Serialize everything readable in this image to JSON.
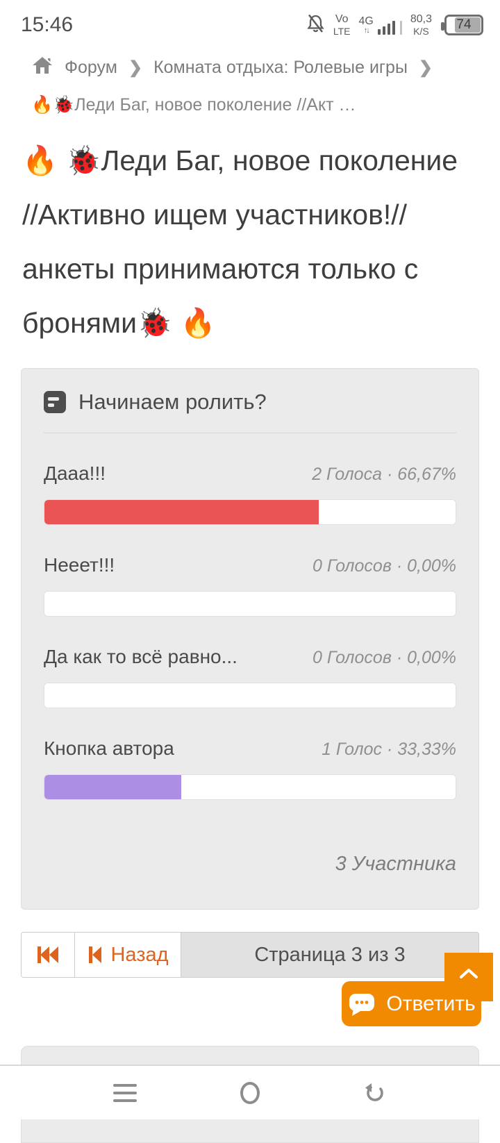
{
  "status_bar": {
    "time": "15:46",
    "volte_top": "Vo",
    "volte_bottom": "LTE",
    "network": "4G",
    "data_arrows": "↑↓",
    "speed_value": "80,3",
    "speed_unit": "K/S",
    "battery_percent": "74",
    "battery_level": 74
  },
  "breadcrumb": {
    "home": "Форум",
    "separator": "❯",
    "section": "Комната отдыха: Ролевые игры",
    "topic_short": "🔥🐞Леди Баг, новое поколение //Акт …"
  },
  "topic": {
    "title": "🔥 🐞Леди Баг, новое поколение //Активно ищем участников!// анкеты принимаются только с бронями🐞 🔥"
  },
  "poll": {
    "question": "Начинаем ролить?",
    "options": [
      {
        "label": "Дааа!!!",
        "meta": "2 Голоса · 66,67%",
        "percent": 66.67,
        "color": "#ea5455"
      },
      {
        "label": "Нееет!!!",
        "meta": "0 Голосов · 0,00%",
        "percent": 0,
        "color": "transparent"
      },
      {
        "label": "Да как то всё равно...",
        "meta": "0 Голосов · 0,00%",
        "percent": 0,
        "color": "transparent"
      },
      {
        "label": "Кнопка автора",
        "meta": "1 Голос · 33,33%",
        "percent": 33.33,
        "color": "#ac8fe4"
      }
    ],
    "participants": "3 Участника"
  },
  "pagination": {
    "back_label": "Назад",
    "page_info": "Страница 3 из 3"
  },
  "floating": {
    "reply_label": "Ответить"
  },
  "colors": {
    "accent_orange": "#f18a00",
    "pagination_orange": "#dd6321",
    "poll_red": "#ea5455",
    "poll_purple": "#ac8fe4",
    "card_bg": "#ebebeb"
  }
}
